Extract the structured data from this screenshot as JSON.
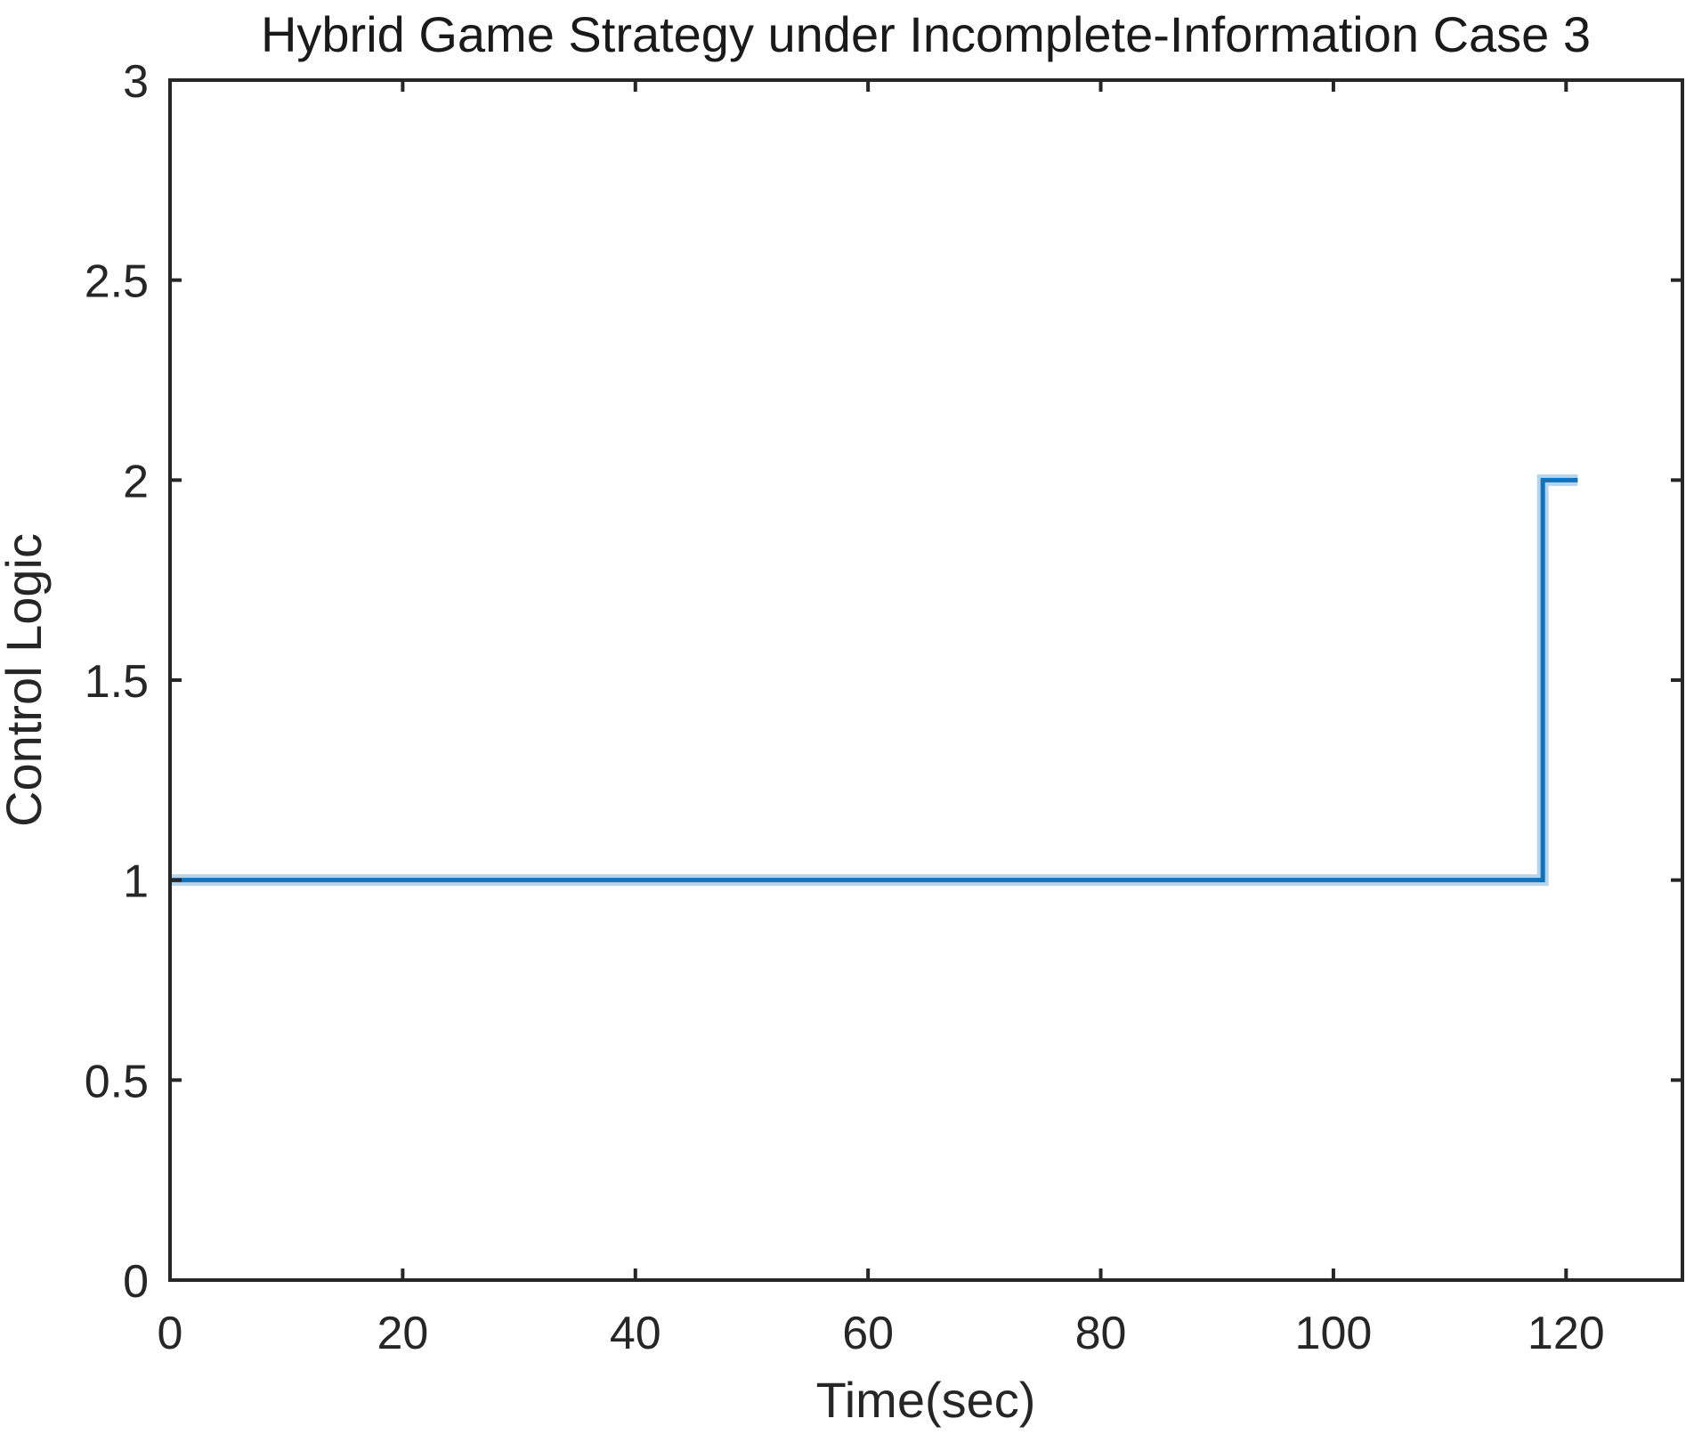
{
  "figure": {
    "background": "#ffffff",
    "axis_color": "#262626",
    "text_color": "#262626"
  },
  "chart_data": {
    "type": "line",
    "title": "Hybrid Game Strategy under Incomplete-Information Case 3",
    "xlabel": "Time(sec)",
    "ylabel": "Control Logic",
    "xlim": [
      0,
      130
    ],
    "ylim": [
      0,
      3
    ],
    "xticks": [
      0,
      20,
      40,
      60,
      80,
      100,
      120
    ],
    "yticks": [
      0,
      0.5,
      1,
      1.5,
      2,
      2.5,
      3
    ],
    "grid": false,
    "legend": "none",
    "box": true,
    "tick_direction": "in",
    "series": [
      {
        "name": "control-logic-step-signal",
        "color": "#0e72bd",
        "halo_color": "rgba(14,114,189,0.30)",
        "x": [
          0,
          118,
          118,
          121
        ],
        "y": [
          1,
          1,
          2,
          2
        ]
      }
    ]
  }
}
